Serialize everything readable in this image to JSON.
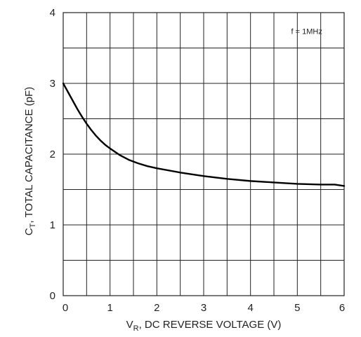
{
  "chart_data": {
    "type": "line",
    "title": "",
    "xlabel": {
      "main": "V",
      "sub": "R",
      "rest": ", DC REVERSE VOLTAGE (V)"
    },
    "ylabel": {
      "main": "C",
      "sub": "T",
      "rest": ", TOTAL CAPACITANCE (pF)"
    },
    "xlim": [
      0,
      6
    ],
    "ylim": [
      0,
      4
    ],
    "x_ticks": [
      "0",
      "1",
      "2",
      "3",
      "4",
      "5",
      "6"
    ],
    "y_ticks": [
      "0",
      "1",
      "2",
      "3",
      "4"
    ],
    "grid": true,
    "grid_x_step": 0.5,
    "grid_y_step": 0.5,
    "annotation": "f = 1MHz",
    "line_color": "#000000",
    "grid_color": "#222222",
    "series": [
      {
        "x": [
          0,
          0.1,
          0.2,
          0.3,
          0.4,
          0.5,
          0.6,
          0.7,
          0.8,
          0.9,
          1.0,
          1.2,
          1.4,
          1.6,
          1.8,
          2.0,
          2.5,
          3.0,
          3.5,
          4.0,
          4.5,
          5.0,
          5.5,
          5.8,
          6.0
        ],
        "y": [
          3.0,
          2.88,
          2.76,
          2.64,
          2.53,
          2.43,
          2.34,
          2.26,
          2.19,
          2.13,
          2.08,
          1.99,
          1.92,
          1.87,
          1.83,
          1.8,
          1.74,
          1.69,
          1.65,
          1.62,
          1.6,
          1.58,
          1.57,
          1.57,
          1.55
        ]
      }
    ]
  }
}
